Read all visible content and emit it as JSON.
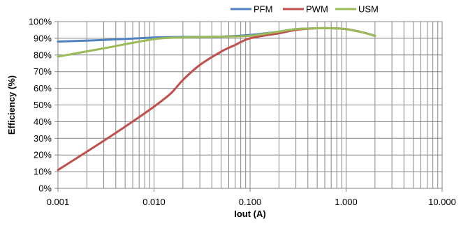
{
  "chart_data": {
    "type": "line",
    "xscale": "log",
    "xlim": [
      0.001,
      10
    ],
    "ylim": [
      0,
      100
    ],
    "xlabel": "Iout (A)",
    "ylabel": "Efficiency (%)",
    "xticks": [
      "0.001",
      "0.010",
      "0.100",
      "1.000",
      "10.000"
    ],
    "yticks": [
      "0%",
      "10%",
      "20%",
      "30%",
      "40%",
      "50%",
      "60%",
      "70%",
      "80%",
      "90%",
      "100%"
    ],
    "grid": true,
    "legend_position": "top-right",
    "series": [
      {
        "name": "PFM",
        "color": "#4F81BD",
        "x": [
          0.001,
          0.003,
          0.01,
          0.02,
          0.05,
          0.1,
          0.2,
          0.3,
          0.5,
          0.7,
          1.0,
          1.5,
          2.0
        ],
        "y": [
          88,
          89,
          90.5,
          90.8,
          91,
          92,
          94,
          95.5,
          96,
          96,
          95.5,
          93.5,
          91.5
        ]
      },
      {
        "name": "PWM",
        "color": "#C0504D",
        "x": [
          0.001,
          0.002,
          0.005,
          0.01,
          0.015,
          0.02,
          0.03,
          0.05,
          0.07,
          0.1,
          0.2,
          0.3,
          0.5,
          0.7,
          1.0,
          1.5,
          2.0
        ],
        "y": [
          11,
          22,
          37,
          49,
          57,
          65,
          74,
          82,
          86,
          90,
          93,
          95,
          96,
          96,
          95.5,
          93.5,
          91.5
        ]
      },
      {
        "name": "USM",
        "color": "#9BBB59",
        "x": [
          0.001,
          0.003,
          0.01,
          0.02,
          0.05,
          0.1,
          0.2,
          0.3,
          0.5,
          0.7,
          1.0,
          1.5,
          2.0
        ],
        "y": [
          79,
          84,
          89.5,
          90.5,
          91,
          91.5,
          94,
          95.5,
          96,
          96,
          95.5,
          93.5,
          91.5
        ]
      }
    ]
  }
}
